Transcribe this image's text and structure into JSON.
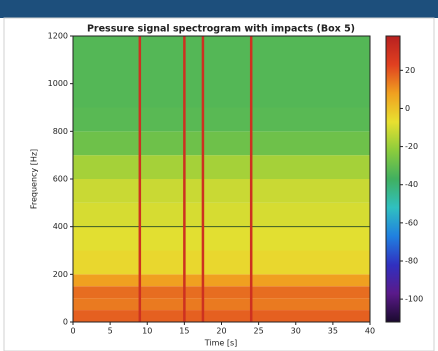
{
  "chart_data": {
    "type": "spectrogram",
    "title": "Pressure signal spectrogram with impacts (Box 5)",
    "x_label": "Time [s]",
    "y_label": "Frequency [Hz]",
    "xlim": [
      0,
      40
    ],
    "xticks": [
      0,
      5,
      10,
      15,
      20,
      25,
      30,
      35,
      40
    ],
    "ylim": [
      0,
      1200
    ],
    "yticks": [
      0,
      200,
      400,
      600,
      800,
      1000,
      1200
    ],
    "y_bins": [
      0,
      50,
      100,
      150,
      200,
      300,
      400,
      500,
      600,
      700,
      800,
      900,
      1200
    ],
    "levels": [
      18,
      14,
      16,
      8,
      -5,
      -8,
      -10,
      -12,
      -18,
      -28,
      -32,
      -33
    ],
    "impacts": [
      9,
      15,
      17.5,
      24
    ],
    "impact_level": 30,
    "hline": 400,
    "hline_color": "#3a5a2a",
    "clim": [
      -112,
      38
    ],
    "cticks": [
      20,
      0,
      -20,
      -40,
      -60,
      -80,
      -100
    ],
    "colormap": [
      "#1a0a2e",
      "#5a1a8a",
      "#3030c0",
      "#2080e0",
      "#30c0c0",
      "#40b060",
      "#8ccc3c",
      "#e8e030",
      "#f0a020",
      "#e04020",
      "#b82020"
    ]
  }
}
